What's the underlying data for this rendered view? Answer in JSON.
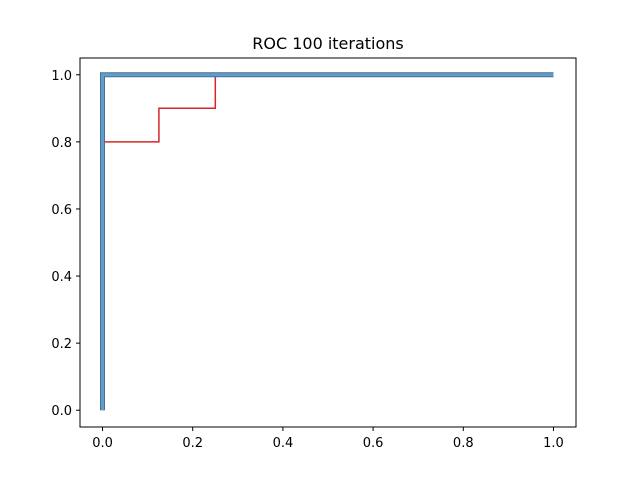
{
  "chart_data": {
    "type": "line",
    "title": "ROC 100 iterations",
    "xlabel": "",
    "ylabel": "",
    "xlim": [
      -0.05,
      1.05
    ],
    "ylim": [
      -0.05,
      1.05
    ],
    "xticks": [
      0.0,
      0.2,
      0.4,
      0.6,
      0.8,
      1.0
    ],
    "yticks": [
      0.0,
      0.2,
      0.4,
      0.6,
      0.8,
      1.0
    ],
    "xtick_labels": [
      "0.0",
      "0.2",
      "0.4",
      "0.6",
      "0.8",
      "1.0"
    ],
    "ytick_labels": [
      "0.0",
      "0.2",
      "0.4",
      "0.6",
      "0.8",
      "1.0"
    ],
    "grid": false,
    "legend": null,
    "series": [
      {
        "color": "#d62728",
        "x": [
          0.0,
          0.0,
          0.125,
          0.125,
          0.25,
          0.25,
          1.0
        ],
        "y": [
          0.0,
          0.8,
          0.8,
          0.9,
          0.9,
          1.0,
          1.0
        ]
      },
      {
        "color": "#5f9fcf",
        "x": [
          0.0,
          0.0,
          1.0
        ],
        "y": [
          0.0,
          1.0,
          1.0
        ]
      }
    ]
  }
}
